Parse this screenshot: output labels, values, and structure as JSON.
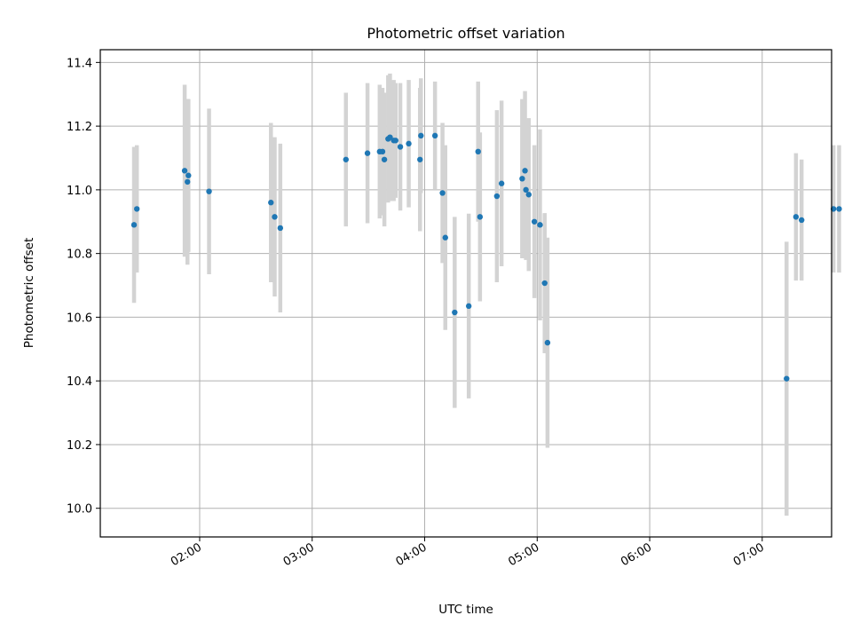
{
  "chart_data": {
    "type": "scatter",
    "title": "Photometric offset variation",
    "xlabel": "UTC time",
    "ylabel": "Photometric offset",
    "x_ticks": [
      "02:00",
      "03:00",
      "04:00",
      "05:00",
      "06:00",
      "07:00"
    ],
    "y_ticks": [
      "10.0",
      "10.2",
      "10.4",
      "10.6",
      "10.8",
      "11.0",
      "11.2",
      "11.4"
    ],
    "xlim": [
      "01:07",
      "07:37"
    ],
    "ylim": [
      9.91,
      11.44
    ],
    "grid": true,
    "colors": {
      "point": "#1f77b4",
      "errorbar": "#d3d3d3"
    },
    "series": [
      {
        "x": [
          "01:25:00",
          "01:26:30",
          "01:52:00",
          "01:53:30",
          "01:54:00",
          "02:05:00",
          "02:38:00",
          "02:40:00",
          "02:43:00",
          "03:18:00",
          "03:29:30",
          "03:36:00",
          "03:37:30",
          "03:38:30",
          "03:40:30",
          "03:41:30",
          "03:43:30",
          "03:44:30",
          "03:47:00",
          "03:51:30",
          "03:57:30",
          "03:58:00",
          "04:05:30",
          "04:09:30",
          "04:11:00",
          "04:16:00",
          "04:23:30",
          "04:28:30",
          "04:29:30",
          "04:38:30",
          "04:41:00",
          "04:52:00",
          "04:53:30",
          "04:54:00",
          "04:55:30",
          "04:58:30",
          "05:01:30",
          "05:04:00",
          "05:05:30",
          "07:13:00",
          "07:18:00",
          "07:21:00",
          "07:38:00",
          "07:41:00"
        ],
        "y": [
          10.89,
          10.94,
          11.06,
          11.025,
          11.045,
          10.995,
          10.96,
          10.915,
          10.88,
          11.095,
          11.115,
          11.12,
          11.12,
          11.095,
          11.16,
          11.165,
          11.155,
          11.155,
          11.135,
          11.145,
          11.095,
          11.17,
          11.17,
          10.99,
          10.85,
          10.615,
          10.635,
          11.12,
          10.915,
          10.98,
          11.02,
          11.035,
          11.06,
          11.0,
          10.985,
          10.9,
          10.89,
          10.707,
          10.52,
          10.407,
          10.915,
          10.905,
          10.94,
          10.94
        ],
        "err": [
          0.245,
          0.2,
          0.27,
          0.26,
          0.24,
          0.26,
          0.25,
          0.25,
          0.265,
          0.21,
          0.22,
          0.21,
          0.2,
          0.21,
          0.2,
          0.2,
          0.19,
          0.18,
          0.2,
          0.2,
          0.225,
          0.18,
          0.17,
          0.22,
          0.29,
          0.3,
          0.29,
          0.22,
          0.265,
          0.27,
          0.26,
          0.25,
          0.25,
          0.22,
          0.24,
          0.24,
          0.3,
          0.22,
          0.33,
          0.43,
          0.2,
          0.19,
          0.2,
          0.2
        ]
      }
    ]
  }
}
